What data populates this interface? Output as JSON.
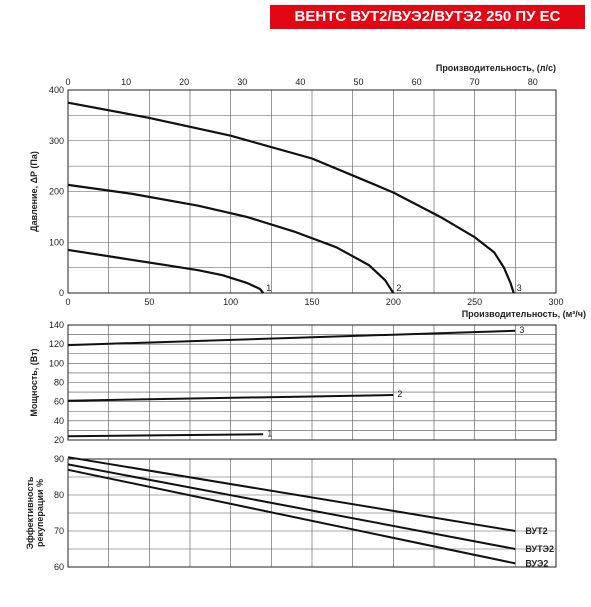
{
  "title": "ВЕНТС ВУТ2/ВУЭ2/ВУТЭ2 250 ПУ ЕС",
  "chart_data": [
    {
      "type": "line",
      "name": "pressure_vs_flow",
      "ylabel": "Давление, ΔP (Па)",
      "xlabel": "Производительность, (м³/ч)",
      "x2label": "Производительность, (л/с)",
      "xlim": [
        0,
        300
      ],
      "x2lim": [
        0,
        84
      ],
      "ylim": [
        0,
        400
      ],
      "xticks": [
        0,
        50,
        100,
        150,
        200,
        250,
        300
      ],
      "x2ticks": [
        0,
        10,
        20,
        30,
        40,
        50,
        60,
        70,
        80
      ],
      "yticks": [
        0,
        100,
        200,
        300,
        400
      ],
      "grid": true,
      "series": [
        {
          "name": "1",
          "x": [
            0,
            30,
            60,
            80,
            95,
            110,
            118,
            120
          ],
          "y": [
            85,
            70,
            55,
            45,
            35,
            20,
            8,
            0
          ]
        },
        {
          "name": "2",
          "x": [
            0,
            40,
            80,
            110,
            140,
            165,
            185,
            195,
            200
          ],
          "y": [
            213,
            195,
            172,
            150,
            120,
            90,
            55,
            25,
            0
          ]
        },
        {
          "name": "3",
          "x": [
            0,
            50,
            100,
            150,
            180,
            200,
            230,
            250,
            262,
            268,
            272,
            274
          ],
          "y": [
            375,
            345,
            310,
            265,
            225,
            198,
            148,
            110,
            80,
            50,
            20,
            0
          ]
        }
      ]
    },
    {
      "type": "line",
      "name": "power_vs_flow",
      "ylabel": "Мощность, (Вт)",
      "xlim": [
        0,
        300
      ],
      "ylim": [
        20,
        140
      ],
      "yticks": [
        20,
        40,
        60,
        80,
        100,
        120,
        140
      ],
      "grid": true,
      "series": [
        {
          "name": "1",
          "x": [
            0,
            120
          ],
          "y": [
            24,
            26
          ]
        },
        {
          "name": "2",
          "x": [
            0,
            200
          ],
          "y": [
            61,
            67
          ]
        },
        {
          "name": "3",
          "x": [
            0,
            275
          ],
          "y": [
            119,
            134
          ]
        }
      ]
    },
    {
      "type": "line",
      "name": "recuperation_efficiency",
      "ylabel": "Эффективность рекуперации %",
      "xlim": [
        0,
        300
      ],
      "ylim": [
        60,
        90
      ],
      "yticks": [
        60,
        70,
        80,
        90
      ],
      "grid": true,
      "series": [
        {
          "name": "ВУТ2",
          "x": [
            0,
            275
          ],
          "y": [
            90.5,
            70
          ]
        },
        {
          "name": "ВУТЭ2",
          "x": [
            0,
            275
          ],
          "y": [
            88.5,
            65
          ]
        },
        {
          "name": "ВУЭ2",
          "x": [
            0,
            275
          ],
          "y": [
            87,
            61
          ]
        }
      ]
    }
  ]
}
